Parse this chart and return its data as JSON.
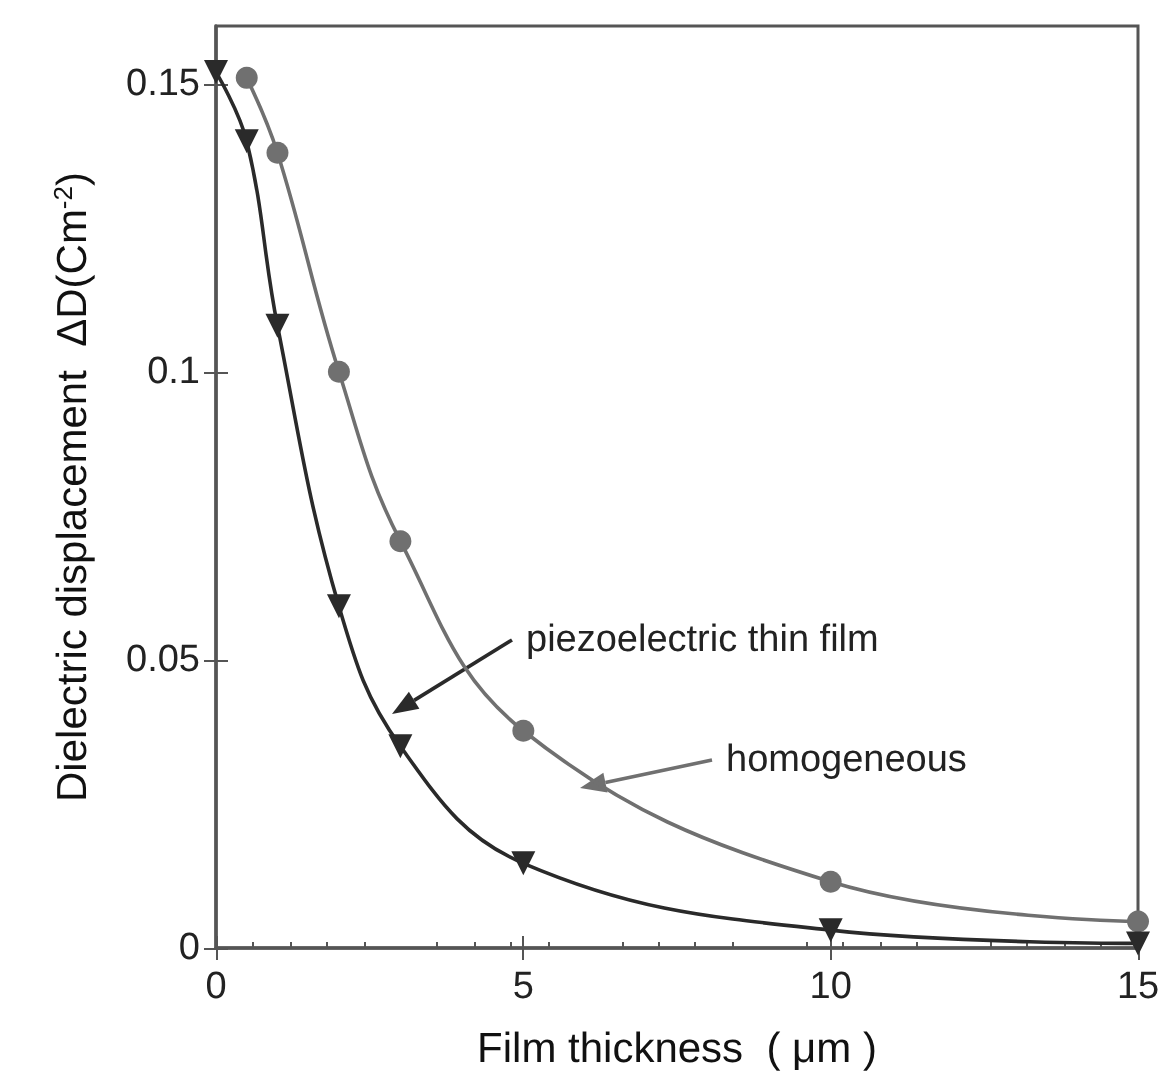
{
  "chart_data": {
    "type": "line",
    "xlabel": "Film thickness  ( μm )",
    "ylabel": "Dielectric displacement  ΔD(Cm$^{-2}$)",
    "xlim": [
      0,
      15
    ],
    "xticks": [
      0,
      5,
      10,
      15
    ],
    "ylim": [
      0,
      0.16
    ],
    "yticks": [
      0,
      0.05,
      0.1,
      0.15
    ],
    "grid": false,
    "line_style": "solid",
    "series": [
      {
        "color": "#707070",
        "marker": "circle",
        "x": [
          0.5,
          1,
          2,
          3,
          5,
          10,
          15
        ],
        "values": [
          0.151,
          0.138,
          0.1,
          0.0706,
          0.0377,
          0.0115,
          0.0046
        ]
      },
      {
        "color": "#2a2a2a",
        "marker": "triangle",
        "x": [
          0,
          0.5,
          1,
          2,
          3,
          5,
          10,
          15
        ],
        "values": [
          0.152,
          0.14,
          0.108,
          0.0593,
          0.035,
          0.0147,
          0.0031,
          0.0008
        ]
      }
    ],
    "annotations": [
      "piezoelectric thin film",
      "homogeneous"
    ]
  }
}
